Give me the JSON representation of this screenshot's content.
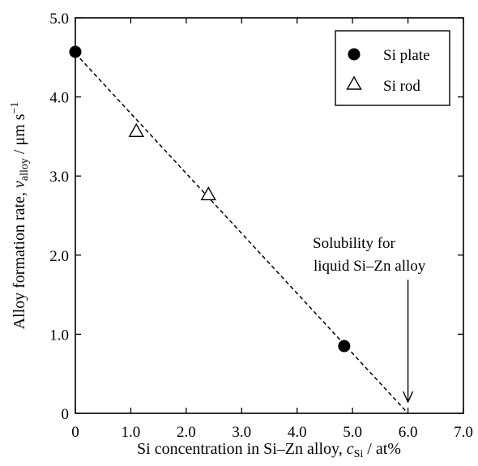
{
  "chart_data": {
    "type": "scatter",
    "title": "",
    "xlabel": {
      "main": "Si concentration in Si–Zn alloy, ",
      "sym": "c",
      "sub": "Si",
      "unit": " / at%"
    },
    "ylabel": {
      "main": "Alloy formation rate, ",
      "sym": "v",
      "sub": "alloy",
      "unit": " / μm s",
      "sup": "−1"
    },
    "xlim": [
      0,
      7.0
    ],
    "ylim": [
      0,
      5.0
    ],
    "xticks": [
      0,
      1.0,
      2.0,
      3.0,
      4.0,
      5.0,
      6.0,
      7.0
    ],
    "xtick_labels": [
      "0",
      "1.0",
      "2.0",
      "3.0",
      "4.0",
      "5.0",
      "6.0",
      "7.0"
    ],
    "yticks": [
      0,
      1.0,
      2.0,
      3.0,
      4.0,
      5.0
    ],
    "ytick_labels": [
      "0",
      "1.0",
      "2.0",
      "3.0",
      "4.0",
      "5.0"
    ],
    "grid": false,
    "legend_position": "top-right",
    "series": [
      {
        "name": "Si plate",
        "marker": "filled-circle",
        "points": [
          {
            "x": 0,
            "y": 4.57
          },
          {
            "x": 4.85,
            "y": 0.85
          }
        ]
      },
      {
        "name": "Si rod",
        "marker": "open-triangle",
        "points": [
          {
            "x": 1.1,
            "y": 3.57
          },
          {
            "x": 2.4,
            "y": 2.77
          }
        ]
      }
    ],
    "fit_line": {
      "style": "dashed",
      "points": [
        {
          "x": 0,
          "y": 4.55
        },
        {
          "x": 6.0,
          "y": 0
        }
      ]
    },
    "annotation": {
      "lines": [
        "Solubility for",
        "liquid Si–Zn alloy"
      ],
      "arrow_to": {
        "x": 6.0,
        "y": 0
      }
    }
  }
}
